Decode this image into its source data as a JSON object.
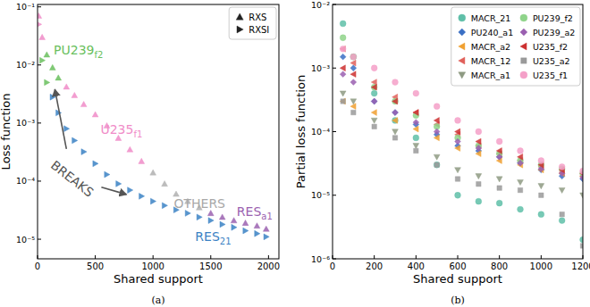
{
  "chart_data": [
    {
      "type": "scatter",
      "caption": "(a)",
      "x_label": "Shared support",
      "y_label": "Loss function",
      "log": "y",
      "grid": false,
      "legend": "upper right",
      "xlim": [
        0,
        2090
      ],
      "ylim": [
        4.6e-06,
        0.11
      ],
      "xticks": [
        0,
        500,
        1000,
        1500,
        2000
      ],
      "yticks": [
        {
          "value": 1e-05,
          "label": "10⁻⁵"
        },
        {
          "value": 0.0001,
          "label": "10⁻⁴"
        },
        {
          "value": 0.001,
          "label": "10⁻³"
        },
        {
          "value": 0.01,
          "label": "10⁻²"
        },
        {
          "value": 0.1,
          "label": "10⁻¹"
        }
      ],
      "x": [
        10,
        40,
        80,
        130,
        180,
        250,
        320,
        400,
        500,
        600,
        700,
        800,
        900,
        1000,
        1100,
        1200,
        1300,
        1400,
        1500,
        1600,
        1700,
        1800,
        1900,
        1980
      ],
      "series": [
        {
          "name": "RXS",
          "marker": "triangle-up",
          "color": "#222222",
          "values": [
            0.07,
            0.03,
            0.015,
            0.009,
            0.006,
            0.0042,
            0.003,
            0.0021,
            0.0014,
            0.0009,
            0.00055,
            0.00035,
            0.00022,
            0.00014,
            9e-05,
            6e-05,
            4.5e-05,
            3.5e-05,
            2.8e-05,
            2.4e-05,
            2.1e-05,
            1.9e-05,
            1.7e-05,
            1.5e-05
          ],
          "colors": [
            "#f08cc8",
            "#f08cc8",
            "#6abf5e",
            "#6abf5e",
            "#6abf5e",
            "#f08cc8",
            "#f08cc8",
            "#f08cc8",
            "#f08cc8",
            "#f08cc8",
            "#f08cc8",
            "#f08cc8",
            "#f08cc8",
            "#b0b0b0",
            "#b0b0b0",
            "#b0b0b0",
            "#b0b0b0",
            "#b0b0b0",
            "#9b62b0",
            "#9b62b0",
            "#9b62b0",
            "#9b62b0",
            "#9b62b0",
            "#9b62b0"
          ]
        },
        {
          "name": "RXSI",
          "marker": "triangle-right",
          "color": "#222222",
          "values": [
            0.05,
            0.012,
            0.005,
            0.0028,
            0.0015,
            0.0008,
            0.0005,
            0.00032,
            0.0002,
            0.00013,
            9e-05,
            7e-05,
            5.5e-05,
            4.5e-05,
            3.8e-05,
            3.2e-05,
            2.8e-05,
            2.4e-05,
            2.1e-05,
            1.8e-05,
            1.6e-05,
            1.4e-05,
            1.25e-05,
            1.1e-05
          ],
          "colors": [
            "#f08cc8",
            "#6abf5e",
            "#6abf5e",
            "#3b82c4",
            "#3b82c4",
            "#3b82c4",
            "#3b82c4",
            "#3b82c4",
            "#3b82c4",
            "#3b82c4",
            "#3b82c4",
            "#3b82c4",
            "#3b82c4",
            "#3b82c4",
            "#3b82c4",
            "#3b82c4",
            "#3b82c4",
            "#3b82c4",
            "#3b82c4",
            "#3b82c4",
            "#3b82c4",
            "#3b82c4",
            "#3b82c4",
            "#3b82c4"
          ]
        }
      ],
      "annotations": [
        {
          "text": "PU239",
          "subscript": "f2",
          "x": 140,
          "y": 0.015,
          "color": "#6abf5e"
        },
        {
          "text": "U235",
          "subscript": "f1",
          "x": 545,
          "y": 0.00066,
          "color": "#f08cc8"
        },
        {
          "text": "OTHERS",
          "x": 1180,
          "y": 3.5e-05,
          "color": "#a8a8a8"
        },
        {
          "text": "RES",
          "subscript": "a1",
          "x": 1725,
          "y": 2.5e-05,
          "color": "#9b62b0"
        },
        {
          "text": "RES",
          "subscript": "21",
          "x": 1365,
          "y": 9.3e-06,
          "color": "#3b82c4"
        },
        {
          "text": "BREAKS",
          "x": 300,
          "y": 0.00011,
          "color": "#555555",
          "arrows": [
            {
              "x": 150,
              "y": 0.0038
            },
            {
              "x": 770,
              "y": 5.9e-05
            }
          ]
        }
      ]
    },
    {
      "type": "scatter",
      "caption": "(b)",
      "x_label": "Shared support",
      "y_label": "Partial loss function",
      "log": "y",
      "grid": false,
      "legend": "upper right",
      "xlim": [
        0,
        1200
      ],
      "ylim": [
        1e-06,
        0.01
      ],
      "xticks": [
        0,
        200,
        400,
        600,
        800,
        1000,
        1200
      ],
      "yticks": [
        {
          "value": 1e-06,
          "label": "10⁻⁶"
        },
        {
          "value": 1e-05,
          "label": "10⁻⁵"
        },
        {
          "value": 0.0001,
          "label": "10⁻⁴"
        },
        {
          "value": 0.001,
          "label": "10⁻³"
        },
        {
          "value": 0.01,
          "label": "10⁻²"
        }
      ],
      "x": [
        50,
        100,
        200,
        300,
        400,
        500,
        600,
        700,
        800,
        900,
        1000,
        1100,
        1200
      ],
      "series": [
        {
          "name": "MACR_21",
          "marker": "circle",
          "color": "#5fbfa8",
          "values": [
            0.005,
            0.0015,
            0.0004,
            0.00015,
            8e-05,
            3e-05,
            1e-05,
            8e-06,
            7.5e-06,
            6e-06,
            5e-06,
            4e-06,
            2e-06
          ]
        },
        {
          "name": "PU240_a1",
          "marker": "diamond",
          "color": "#3a6fc4",
          "values": [
            0.0015,
            0.001,
            0.0003,
            0.0002,
            0.00013,
            9e-05,
            6e-05,
            5e-05,
            4e-05,
            3.2e-05,
            2.5e-05,
            2e-05,
            1.8e-05
          ]
        },
        {
          "name": "MACR_a2",
          "marker": "triangle-left",
          "color": "#f0a030",
          "values": [
            0.0003,
            0.00025,
            0.0002,
            0.00015,
            0.00011,
            8e-05,
            5.5e-05,
            4.5e-05,
            3.5e-05,
            3e-05,
            2.5e-05,
            2.2e-05,
            2e-05
          ]
        },
        {
          "name": "MACR_12",
          "marker": "triangle-left",
          "color": "#e0605a",
          "values": [
            0.002,
            0.0012,
            0.0006,
            0.00035,
            0.0002,
            0.00013,
            9e-05,
            6e-05,
            4.5e-05,
            3.5e-05,
            2.8e-05,
            2.3e-05,
            2e-05
          ]
        },
        {
          "name": "MACR_a1",
          "marker": "triangle-down",
          "color": "#8e9a82",
          "values": [
            0.0004,
            0.0003,
            0.00015,
            0.0001,
            6e-05,
            4e-05,
            2.5e-05,
            2e-05,
            1.8e-05,
            1.6e-05,
            1.4e-05,
            1.2e-05,
            1e-05
          ]
        },
        {
          "name": "PU239_f2",
          "marker": "circle",
          "color": "#8fd48a",
          "values": [
            0.003,
            0.0015,
            0.0005,
            0.0003,
            0.00018,
            0.00012,
            8e-05,
            6e-05,
            4.5e-05,
            3.5e-05,
            3e-05,
            2.6e-05,
            2.2e-05
          ]
        },
        {
          "name": "PU239_a2",
          "marker": "diamond",
          "color": "#9a5fb0",
          "values": [
            0.0008,
            0.0006,
            0.0003,
            0.0002,
            0.00014,
            0.0001,
            7e-05,
            5.5e-05,
            4e-05,
            3.2e-05,
            2.6e-05,
            2.2e-05,
            1.9e-05
          ]
        },
        {
          "name": "U235_f2",
          "marker": "triangle-left",
          "color": "#cc3030",
          "values": [
            0.001,
            0.0008,
            0.0005,
            0.0003,
            0.0002,
            0.00015,
            0.0001,
            7e-05,
            5e-05,
            4e-05,
            3e-05,
            2.5e-05,
            2.2e-05
          ]
        },
        {
          "name": "U235_a2",
          "marker": "square",
          "color": "#9a9a9a",
          "values": [
            0.0003,
            0.0002,
            0.00012,
            8e-05,
            5e-05,
            3e-05,
            1.8e-05,
            1.5e-05,
            1.3e-05,
            1.2e-05,
            1e-05,
            5e-06,
            1.6e-06
          ]
        },
        {
          "name": "U235_f1",
          "marker": "circle",
          "color": "#f4a0c8",
          "values": [
            0.002,
            0.0015,
            0.001,
            0.0006,
            0.0004,
            0.00025,
            0.00015,
            0.0001,
            7e-05,
            5e-05,
            3.5e-05,
            2.8e-05,
            2.4e-05
          ]
        }
      ]
    }
  ]
}
